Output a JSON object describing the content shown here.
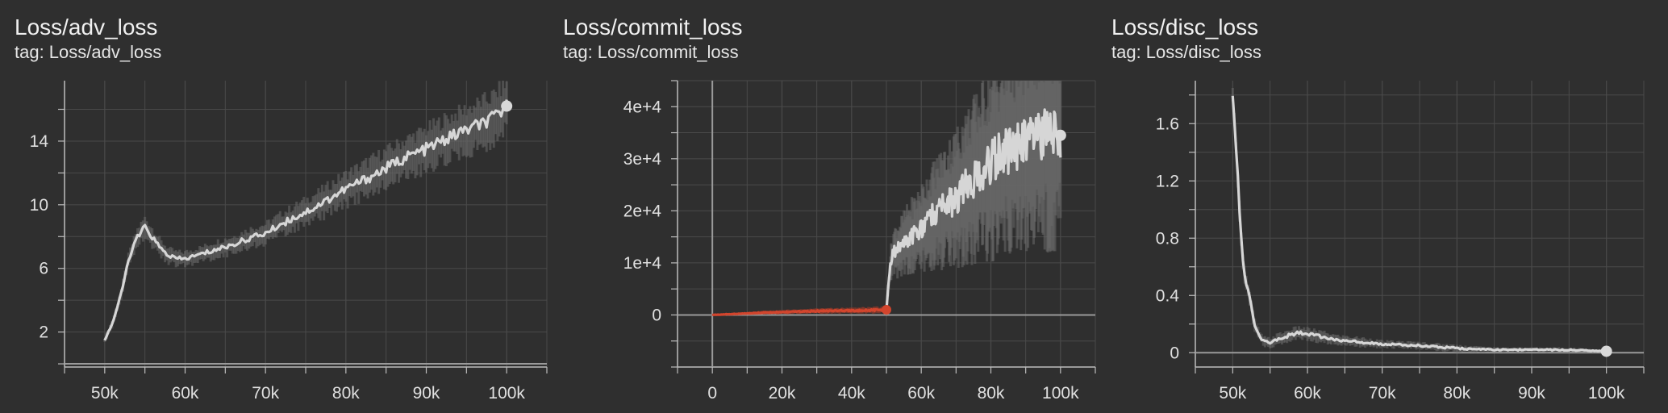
{
  "colors": {
    "background": "#2f2f2f",
    "grid": "#4a4a4a",
    "axis": "#bdbdbd",
    "series_light": "#d6d6d6",
    "series_raw": "#6a6a6a",
    "series_red": "#d2452d"
  },
  "panels": [
    {
      "title": "Loss/adv_loss",
      "tag": "tag: Loss/adv_loss",
      "chart_data": {
        "type": "line",
        "title": "Loss/adv_loss",
        "xlabel": "",
        "ylabel": "",
        "xlim": [
          45000,
          105000
        ],
        "ylim": [
          -0.2,
          17.8
        ],
        "xticks": [
          50000,
          60000,
          70000,
          80000,
          90000,
          100000
        ],
        "xtick_labels": [
          "50k",
          "60k",
          "70k",
          "80k",
          "90k",
          "100k"
        ],
        "yticks": [
          2,
          6,
          10,
          14
        ],
        "ytick_labels": [
          "2",
          "6",
          "10",
          "14"
        ],
        "grid": true,
        "series": [
          {
            "color": "#d6d6d6",
            "x": [
              50000,
              51000,
              52000,
              53000,
              54000,
              55000,
              56000,
              57000,
              58000,
              59000,
              60000,
              62000,
              64000,
              66000,
              68000,
              70000,
              72000,
              74000,
              76000,
              78000,
              80000,
              82000,
              84000,
              86000,
              88000,
              90000,
              92000,
              94000,
              96000,
              98000,
              100000
            ],
            "y": [
              1.5,
              2.6,
              4.3,
              6.6,
              7.9,
              8.6,
              7.9,
              7.2,
              6.8,
              6.6,
              6.6,
              6.9,
              7.2,
              7.5,
              7.9,
              8.2,
              8.8,
              9.3,
              9.8,
              10.4,
              11.0,
              11.5,
              12.0,
              12.6,
              13.1,
              13.5,
              14.0,
              14.5,
              14.9,
              15.3,
              16.2
            ],
            "band_width": [
              0.2,
              0.3,
              0.4,
              0.5,
              0.7,
              0.8,
              0.8,
              0.7,
              0.6,
              0.6,
              0.6,
              0.6,
              0.7,
              0.7,
              0.8,
              0.8,
              0.9,
              1.0,
              1.1,
              1.2,
              1.3,
              1.4,
              1.5,
              1.5,
              1.6,
              1.7,
              1.8,
              1.8,
              1.9,
              2.0,
              2.0
            ]
          }
        ]
      }
    },
    {
      "title": "Loss/commit_loss",
      "tag": "tag: Loss/commit_loss",
      "chart_data": {
        "type": "line",
        "title": "Loss/commit_loss",
        "xlabel": "",
        "ylabel": "",
        "xlim": [
          -10000,
          110000
        ],
        "ylim": [
          -10000,
          45000
        ],
        "xticks": [
          0,
          20000,
          40000,
          60000,
          80000,
          100000
        ],
        "xtick_labels": [
          "0",
          "20k",
          "40k",
          "60k",
          "80k",
          "100k"
        ],
        "yticks": [
          0,
          10000,
          20000,
          30000,
          40000
        ],
        "ytick_labels": [
          "0",
          "1e+4",
          "2e+4",
          "3e+4",
          "4e+4"
        ],
        "grid": true,
        "series": [
          {
            "color": "#d2452d",
            "x": [
              0,
              5000,
              10000,
              15000,
              20000,
              25000,
              30000,
              35000,
              40000,
              45000,
              50000
            ],
            "y": [
              0,
              150,
              300,
              450,
              550,
              650,
              750,
              800,
              850,
              900,
              1000
            ],
            "band_width": [
              100,
              200,
              300,
              400,
              450,
              500,
              550,
              600,
              650,
              700,
              750
            ]
          },
          {
            "color": "#d6d6d6",
            "x": [
              50000,
              51000,
              52000,
              54000,
              56000,
              58000,
              60000,
              62000,
              64000,
              66000,
              68000,
              70000,
              72000,
              74000,
              76000,
              78000,
              80000,
              82000,
              84000,
              86000,
              88000,
              90000,
              92000,
              94000,
              96000,
              98000,
              100000
            ],
            "y": [
              1000,
              9000,
              12000,
              13000,
              14500,
              15500,
              16500,
              18000,
              19500,
              20500,
              21500,
              22500,
              24000,
              25500,
              26500,
              28000,
              29000,
              30500,
              31000,
              32000,
              32500,
              33000,
              33500,
              34000,
              34500,
              35000,
              34500
            ],
            "band_width": [
              500,
              3000,
              5000,
              6000,
              7000,
              8000,
              9000,
              10000,
              11000,
              12000,
              13000,
              14000,
              15000,
              16000,
              17000,
              18000,
              19000,
              19500,
              20000,
              20500,
              21000,
              21500,
              22000,
              22500,
              23000,
              23000,
              22000
            ]
          }
        ]
      }
    },
    {
      "title": "Loss/disc_loss",
      "tag": "tag: Loss/disc_loss",
      "chart_data": {
        "type": "line",
        "title": "Loss/disc_loss",
        "xlabel": "",
        "ylabel": "",
        "xlim": [
          45000,
          105000
        ],
        "ylim": [
          -0.1,
          1.9
        ],
        "xticks": [
          50000,
          60000,
          70000,
          80000,
          90000,
          100000
        ],
        "xtick_labels": [
          "50k",
          "60k",
          "70k",
          "80k",
          "90k",
          "100k"
        ],
        "yticks": [
          0,
          0.4,
          0.8,
          1.2,
          1.6
        ],
        "ytick_labels": [
          "0",
          "0.4",
          "0.8",
          "1.2",
          "1.6"
        ],
        "grid": true,
        "series": [
          {
            "color": "#d6d6d6",
            "x": [
              50000,
              50500,
              51000,
              51500,
              52000,
              53000,
              54000,
              55000,
              56000,
              57000,
              58000,
              59000,
              60000,
              62000,
              64000,
              66000,
              68000,
              70000,
              75000,
              80000,
              85000,
              90000,
              95000,
              100000
            ],
            "y": [
              1.8,
              1.4,
              0.9,
              0.55,
              0.45,
              0.18,
              0.08,
              0.07,
              0.09,
              0.11,
              0.13,
              0.14,
              0.13,
              0.11,
              0.09,
              0.08,
              0.07,
              0.06,
              0.05,
              0.03,
              0.02,
              0.02,
              0.02,
              0.01
            ],
            "band_width": [
              0.05,
              0.08,
              0.08,
              0.07,
              0.06,
              0.05,
              0.04,
              0.04,
              0.05,
              0.05,
              0.05,
              0.05,
              0.05,
              0.05,
              0.04,
              0.04,
              0.04,
              0.03,
              0.03,
              0.03,
              0.02,
              0.02,
              0.02,
              0.01
            ]
          }
        ]
      }
    }
  ]
}
